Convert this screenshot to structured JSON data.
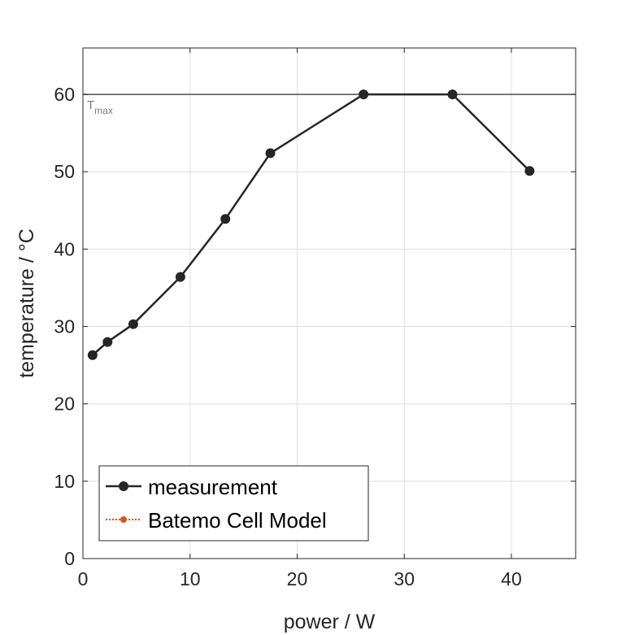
{
  "chart_data": {
    "type": "line",
    "xlabel": "power / W",
    "ylabel": "temperature / °C",
    "xlim": [
      0,
      46
    ],
    "ylim": [
      0,
      66
    ],
    "xticks": [
      0,
      10,
      20,
      30,
      40
    ],
    "yticks": [
      0,
      10,
      20,
      30,
      40,
      50,
      60
    ],
    "grid": true,
    "legend_position": "bottom-left",
    "series": [
      {
        "name": "measurement",
        "color": "#262626",
        "marker": "circle",
        "line": "solid",
        "x": [
          0.9,
          2.3,
          4.7,
          9.1,
          13.3,
          17.5,
          26.2,
          34.5,
          41.7
        ],
        "y": [
          26.3,
          28.0,
          30.3,
          36.4,
          43.9,
          52.4,
          60.0,
          60.0,
          50.1
        ]
      },
      {
        "name": "Batemo Cell Model",
        "color": "#d95319",
        "marker": "circle",
        "line": "dotted",
        "x": [],
        "y": []
      }
    ],
    "reference_lines": [
      {
        "axis": "y",
        "value": 60,
        "label": "T",
        "label_sub": "max",
        "color": "#4d4d4d"
      }
    ]
  }
}
